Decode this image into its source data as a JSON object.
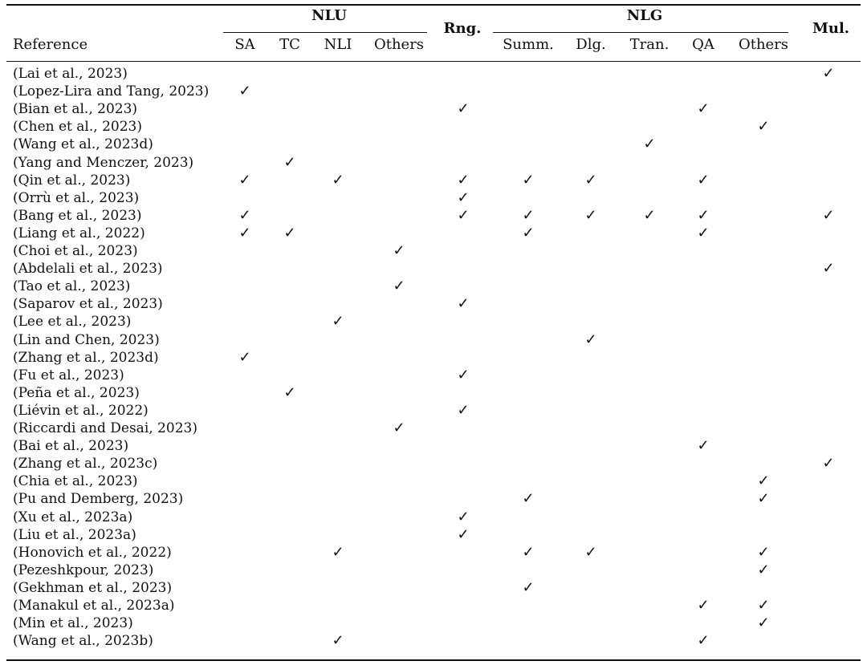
{
  "header": {
    "reference_label": "Reference",
    "groups": [
      {
        "id": "nlu",
        "label": "NLU"
      },
      {
        "id": "rng",
        "label": "Rng."
      },
      {
        "id": "nlg",
        "label": "NLG"
      },
      {
        "id": "mul",
        "label": "Mul."
      }
    ],
    "columns": [
      "SA",
      "TC",
      "NLI",
      "Others",
      "Rng.",
      "Summ.",
      "Dlg.",
      "Tran.",
      "QA",
      "Others",
      "Mul."
    ]
  },
  "check_symbol": "✓",
  "rows": [
    {
      "reference": "(Lai et al., 2023)",
      "checks": [
        10
      ]
    },
    {
      "reference": "(Lopez-Lira and Tang, 2023)",
      "checks": [
        0
      ]
    },
    {
      "reference": "(Bian et al., 2023)",
      "checks": [
        4,
        8
      ]
    },
    {
      "reference": "(Chen et al., 2023)",
      "checks": [
        9
      ]
    },
    {
      "reference": "(Wang et al., 2023d)",
      "checks": [
        7
      ]
    },
    {
      "reference": "(Yang and Menczer, 2023)",
      "checks": [
        1
      ]
    },
    {
      "reference": "(Qin et al., 2023)",
      "checks": [
        0,
        2,
        4,
        5,
        6,
        8
      ]
    },
    {
      "reference": "(Orrù et al., 2023)",
      "checks": [
        4
      ]
    },
    {
      "reference": "(Bang et al., 2023)",
      "checks": [
        0,
        4,
        5,
        6,
        7,
        8,
        10
      ]
    },
    {
      "reference": "(Liang et al., 2022)",
      "checks": [
        0,
        1,
        5,
        8
      ]
    },
    {
      "reference": "(Choi et al., 2023)",
      "checks": [
        3
      ]
    },
    {
      "reference": "(Abdelali et al., 2023)",
      "checks": [
        10
      ]
    },
    {
      "reference": "(Tao et al., 2023)",
      "checks": [
        3
      ]
    },
    {
      "reference": "(Saparov et al., 2023)",
      "checks": [
        4
      ]
    },
    {
      "reference": "(Lee et al., 2023)",
      "checks": [
        2
      ]
    },
    {
      "reference": "(Lin and Chen, 2023)",
      "checks": [
        6
      ]
    },
    {
      "reference": "(Zhang et al., 2023d)",
      "checks": [
        0
      ]
    },
    {
      "reference": "(Fu et al., 2023)",
      "checks": [
        4
      ]
    },
    {
      "reference": "(Peña et al., 2023)",
      "checks": [
        1
      ]
    },
    {
      "reference": "(Liévin et al., 2022)",
      "checks": [
        4
      ]
    },
    {
      "reference": "(Riccardi and Desai, 2023)",
      "checks": [
        3
      ]
    },
    {
      "reference": "(Bai et al., 2023)",
      "checks": [
        8
      ]
    },
    {
      "reference": "(Zhang et al., 2023c)",
      "checks": [
        10
      ]
    },
    {
      "reference": "(Chia et al., 2023)",
      "checks": [
        9
      ]
    },
    {
      "reference": "(Pu and Demberg, 2023)",
      "checks": [
        5,
        9
      ]
    },
    {
      "reference": "(Xu et al., 2023a)",
      "checks": [
        4
      ]
    },
    {
      "reference": "(Liu et al., 2023a)",
      "checks": [
        4
      ]
    },
    {
      "reference": "(Honovich et al., 2022)",
      "checks": [
        2,
        5,
        6,
        9
      ]
    },
    {
      "reference": "(Pezeshkpour, 2023)",
      "checks": [
        9
      ]
    },
    {
      "reference": "(Gekhman et al., 2023)",
      "checks": [
        5
      ]
    },
    {
      "reference": "(Manakul et al., 2023a)",
      "checks": [
        8,
        9
      ]
    },
    {
      "reference": "(Min et al., 2023)",
      "checks": [
        9
      ]
    },
    {
      "reference": "(Wang et al., 2023b)",
      "checks": [
        2,
        8
      ]
    }
  ]
}
